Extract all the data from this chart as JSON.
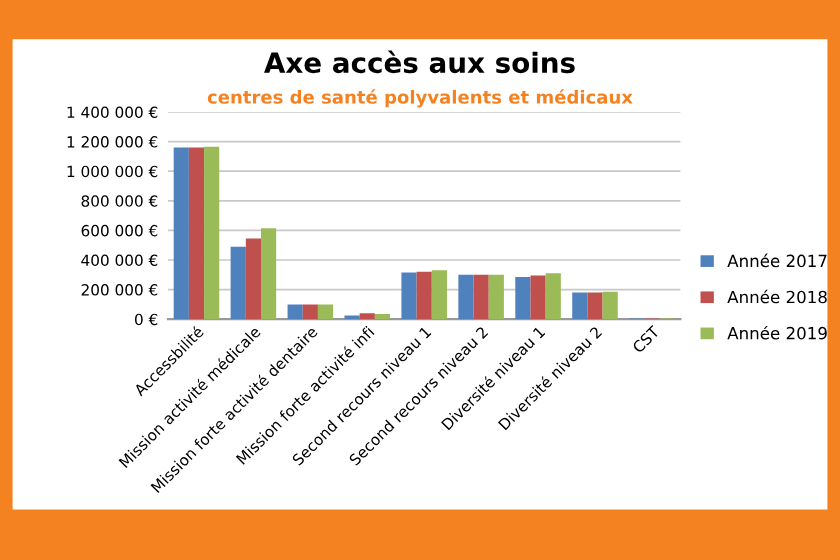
{
  "chart_data": {
    "type": "bar",
    "title": "Axe accès aux soins",
    "subtitle": "centres de santé polyvalents et médicaux",
    "categories": [
      "Accessbilité",
      "Mission activité médicale",
      "Mission forte activité dentaire",
      "Mission forte activité infi",
      "Second recours niveau 1",
      "Second recours niveau 2",
      "Diversité niveau 1",
      "Diversité niveau 2",
      "CST"
    ],
    "series": [
      {
        "name": "Année 2017",
        "color": "#4f81bd",
        "values": [
          1160000,
          490000,
          100000,
          25000,
          315000,
          300000,
          285000,
          180000,
          5000
        ]
      },
      {
        "name": "Année 2018",
        "color": "#c0504d",
        "values": [
          1160000,
          545000,
          100000,
          40000,
          320000,
          300000,
          295000,
          180000,
          5000
        ]
      },
      {
        "name": "Année 2019",
        "color": "#9bbb59",
        "values": [
          1165000,
          615000,
          100000,
          35000,
          330000,
          300000,
          310000,
          185000,
          5000
        ]
      }
    ],
    "ylim": [
      0,
      1400000
    ],
    "yticks": [
      {
        "value": 0,
        "label": "0 €"
      },
      {
        "value": 200000,
        "label": "200 000 €"
      },
      {
        "value": 400000,
        "label": "400 000 €"
      },
      {
        "value": 600000,
        "label": "600 000 €"
      },
      {
        "value": 800000,
        "label": "800 000 €"
      },
      {
        "value": 1000000,
        "label": "1 000 000 €"
      },
      {
        "value": 1200000,
        "label": "1 200 000 €"
      },
      {
        "value": 1400000,
        "label": "1 400 000 €"
      }
    ],
    "grid": "y",
    "legend": "right"
  }
}
